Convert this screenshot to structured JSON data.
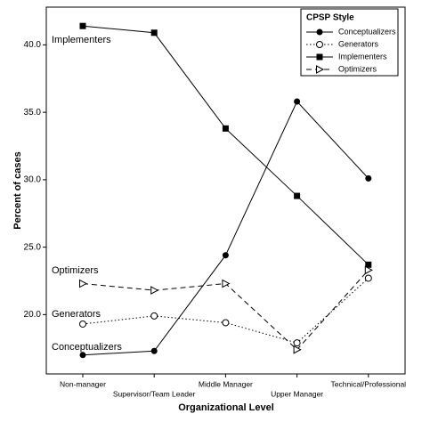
{
  "chart_data": {
    "type": "line",
    "x_label": "Organizational Level",
    "y_label": "Percent of cases",
    "categories": [
      "Non-manager",
      "Supervisor/Team Leader",
      "Middle Manager",
      "Upper Manager",
      "Technical/Professional"
    ],
    "series": [
      {
        "name": "Conceptualizers",
        "color": "#000000",
        "marker": "filled-circle",
        "dash": "solid",
        "values": [
          17.0,
          17.3,
          24.4,
          35.8,
          30.1
        ]
      },
      {
        "name": "Generators",
        "color": "#000000",
        "marker": "open-circle",
        "dash": "dotted",
        "values": [
          19.3,
          19.9,
          19.4,
          17.9,
          22.7
        ]
      },
      {
        "name": "Implementers",
        "color": "#000000",
        "marker": "filled-square",
        "dash": "solid",
        "values": [
          41.4,
          40.9,
          33.8,
          28.8,
          23.7
        ]
      },
      {
        "name": "Optimizers",
        "color": "#000000",
        "marker": "open-triangle",
        "dash": "dashed",
        "values": [
          22.3,
          21.8,
          22.3,
          17.4,
          23.3
        ]
      }
    ],
    "annotations": [
      "Implementers",
      "Optimizers",
      "Generators",
      "Conceptualizers"
    ],
    "legend_title": "CPSP Style",
    "legend": "upper right",
    "ylim": [
      15.6,
      42.8
    ],
    "yticks": [
      {
        "value": 20,
        "label": "20.0"
      },
      {
        "value": 25,
        "label": "25.0"
      },
      {
        "value": 30,
        "label": "30.0"
      },
      {
        "value": 35,
        "label": "35.0"
      },
      {
        "value": 40,
        "label": "40.0"
      }
    ],
    "grid": false
  }
}
